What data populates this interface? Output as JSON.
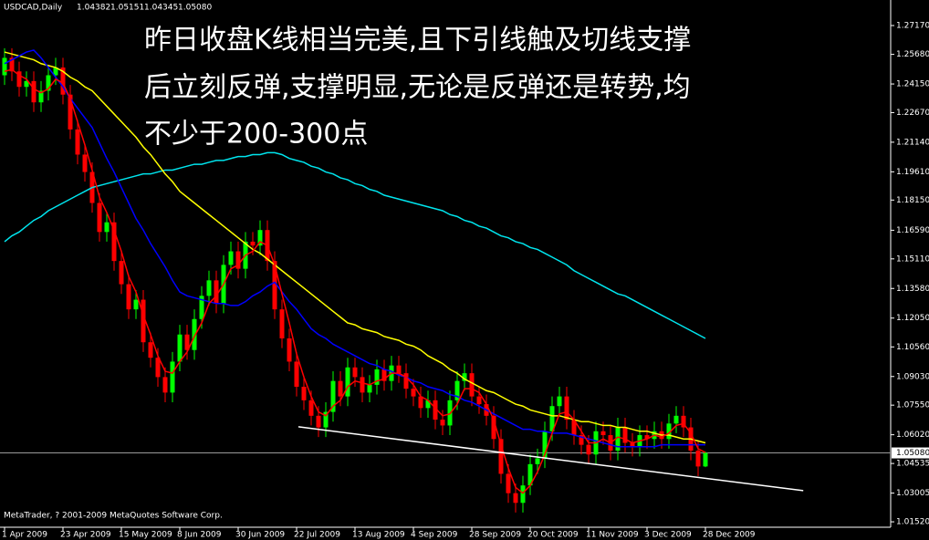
{
  "chart_data": {
    "type": "candlestick",
    "title": "USDCAD,Daily",
    "annotation": [
      "昨日收盘K线相当完美,且下引线触及切线支撑",
      "后立刻反弹,支撑明显,无论是反弹还是转势,均",
      "不少于200-300点"
    ],
    "footer": "MetaTrader, ? 2001-2009 MetaQuotes Software Corp.",
    "background": "#000000",
    "axis_color": "#ffffff",
    "up_color": "#00ff00",
    "down_color": "#ff0000",
    "categories": [
      "1 Apr 2009",
      null,
      null,
      null,
      null,
      null,
      null,
      null,
      "23 Apr 2009",
      null,
      null,
      null,
      null,
      null,
      null,
      null,
      "15 May 2009",
      null,
      null,
      null,
      null,
      null,
      null,
      null,
      "8 Jun 2009",
      null,
      null,
      null,
      null,
      null,
      null,
      null,
      "30 Jun 2009",
      null,
      null,
      null,
      null,
      null,
      null,
      null,
      "22 Jul 2009",
      null,
      null,
      null,
      null,
      null,
      null,
      null,
      "13 Aug 2009",
      null,
      null,
      null,
      null,
      null,
      null,
      null,
      "4 Sep 2009",
      null,
      null,
      null,
      null,
      null,
      null,
      null,
      "28 Sep 2009",
      null,
      null,
      null,
      null,
      null,
      null,
      null,
      "20 Oct 2009",
      null,
      null,
      null,
      null,
      null,
      null,
      null,
      "11 Nov 2009",
      null,
      null,
      null,
      null,
      null,
      null,
      null,
      "3 Dec 2009",
      null,
      null,
      null,
      null,
      null,
      null,
      null,
      "28 Dec 2009"
    ],
    "open": [
      1.246,
      1.255,
      1.248,
      1.24,
      1.243,
      1.232,
      1.238,
      1.246,
      1.25,
      1.236,
      1.218,
      1.205,
      1.196,
      1.18,
      1.165,
      1.17,
      1.15,
      1.138,
      1.125,
      1.13,
      1.108,
      1.1,
      1.09,
      1.082,
      1.098,
      1.112,
      1.104,
      1.12,
      1.132,
      1.14,
      1.128,
      1.148,
      1.155,
      1.146,
      1.16,
      1.158,
      1.166,
      1.15,
      1.125,
      1.11,
      1.098,
      1.085,
      1.078,
      1.07,
      1.064,
      1.072,
      1.088,
      1.08,
      1.095,
      1.09,
      1.082,
      1.086,
      1.094,
      1.088,
      1.096,
      1.092,
      1.084,
      1.08,
      1.074,
      1.078,
      1.068,
      1.065,
      1.078,
      1.088,
      1.092,
      1.08,
      1.076,
      1.07,
      1.058,
      1.04,
      1.03,
      1.025,
      1.034,
      1.045,
      1.048,
      1.062,
      1.075,
      1.08,
      1.068,
      1.06,
      1.055,
      1.05,
      1.062,
      1.06,
      1.052,
      1.064,
      1.056,
      1.054,
      1.06,
      1.058,
      1.062,
      1.058,
      1.066,
      1.07,
      1.064,
      1.052,
      1.04382
    ],
    "high": [
      1.26,
      1.26,
      1.253,
      1.248,
      1.248,
      1.243,
      1.251,
      1.255,
      1.255,
      1.241,
      1.223,
      1.21,
      1.201,
      1.185,
      1.175,
      1.175,
      1.155,
      1.143,
      1.135,
      1.135,
      1.113,
      1.105,
      1.095,
      1.103,
      1.117,
      1.117,
      1.125,
      1.137,
      1.145,
      1.145,
      1.153,
      1.16,
      1.16,
      1.165,
      1.165,
      1.171,
      1.171,
      1.155,
      1.13,
      1.115,
      1.103,
      1.09,
      1.083,
      1.075,
      1.077,
      1.093,
      1.093,
      1.1,
      1.1,
      1.095,
      1.091,
      1.099,
      1.099,
      1.101,
      1.101,
      1.097,
      1.089,
      1.085,
      1.083,
      1.083,
      1.073,
      1.083,
      1.093,
      1.097,
      1.097,
      1.085,
      1.081,
      1.075,
      1.063,
      1.045,
      1.035,
      1.039,
      1.05,
      1.053,
      1.067,
      1.08,
      1.085,
      1.085,
      1.073,
      1.065,
      1.06,
      1.067,
      1.067,
      1.065,
      1.069,
      1.069,
      1.061,
      1.065,
      1.065,
      1.067,
      1.067,
      1.071,
      1.075,
      1.075,
      1.069,
      1.057,
      1.05151
    ],
    "low": [
      1.241,
      1.243,
      1.235,
      1.235,
      1.227,
      1.227,
      1.233,
      1.241,
      1.231,
      1.213,
      1.2,
      1.191,
      1.175,
      1.16,
      1.16,
      1.145,
      1.133,
      1.12,
      1.12,
      1.103,
      1.095,
      1.085,
      1.077,
      1.077,
      1.093,
      1.099,
      1.099,
      1.115,
      1.127,
      1.123,
      1.123,
      1.143,
      1.141,
      1.141,
      1.153,
      1.153,
      1.145,
      1.12,
      1.105,
      1.093,
      1.08,
      1.073,
      1.065,
      1.059,
      1.059,
      1.067,
      1.075,
      1.075,
      1.085,
      1.077,
      1.077,
      1.081,
      1.083,
      1.083,
      1.087,
      1.079,
      1.075,
      1.069,
      1.069,
      1.063,
      1.06,
      1.06,
      1.073,
      1.083,
      1.075,
      1.071,
      1.065,
      1.053,
      1.035,
      1.025,
      1.02,
      1.02,
      1.029,
      1.04,
      1.043,
      1.057,
      1.07,
      1.063,
      1.055,
      1.05,
      1.045,
      1.045,
      1.055,
      1.047,
      1.047,
      1.051,
      1.049,
      1.049,
      1.053,
      1.053,
      1.053,
      1.053,
      1.061,
      1.059,
      1.047,
      1.0388,
      1.04345
    ],
    "close": [
      1.255,
      1.248,
      1.24,
      1.243,
      1.232,
      1.238,
      1.246,
      1.25,
      1.236,
      1.218,
      1.205,
      1.196,
      1.18,
      1.165,
      1.17,
      1.15,
      1.138,
      1.125,
      1.13,
      1.108,
      1.1,
      1.09,
      1.082,
      1.098,
      1.112,
      1.104,
      1.12,
      1.132,
      1.14,
      1.128,
      1.148,
      1.155,
      1.146,
      1.16,
      1.158,
      1.166,
      1.15,
      1.125,
      1.11,
      1.098,
      1.085,
      1.078,
      1.07,
      1.064,
      1.072,
      1.088,
      1.08,
      1.095,
      1.09,
      1.082,
      1.086,
      1.094,
      1.088,
      1.096,
      1.092,
      1.084,
      1.08,
      1.074,
      1.078,
      1.068,
      1.065,
      1.078,
      1.088,
      1.092,
      1.08,
      1.076,
      1.07,
      1.058,
      1.04,
      1.03,
      1.025,
      1.034,
      1.045,
      1.048,
      1.062,
      1.075,
      1.08,
      1.068,
      1.06,
      1.055,
      1.05,
      1.062,
      1.06,
      1.052,
      1.064,
      1.056,
      1.054,
      1.06,
      1.058,
      1.062,
      1.058,
      1.066,
      1.07,
      1.064,
      1.052,
      1.0438,
      1.0508
    ],
    "moving_averages": [
      {
        "color": "#00e5ee",
        "values": [
          1.16,
          1.163,
          1.165,
          1.168,
          1.171,
          1.173,
          1.176,
          1.178,
          1.18,
          1.182,
          1.184,
          1.186,
          1.188,
          1.189,
          1.19,
          1.191,
          1.192,
          1.193,
          1.194,
          1.195,
          1.195,
          1.196,
          1.197,
          1.197,
          1.198,
          1.199,
          1.2,
          1.2,
          1.201,
          1.202,
          1.202,
          1.203,
          1.204,
          1.204,
          1.205,
          1.205,
          1.206,
          1.206,
          1.205,
          1.203,
          1.202,
          1.201,
          1.199,
          1.198,
          1.196,
          1.195,
          1.193,
          1.192,
          1.19,
          1.189,
          1.187,
          1.186,
          1.184,
          1.183,
          1.182,
          1.181,
          1.18,
          1.179,
          1.178,
          1.177,
          1.176,
          1.174,
          1.173,
          1.171,
          1.17,
          1.168,
          1.167,
          1.165,
          1.163,
          1.162,
          1.16,
          1.159,
          1.157,
          1.156,
          1.154,
          1.152,
          1.15,
          1.148,
          1.145,
          1.143,
          1.141,
          1.139,
          1.137,
          1.135,
          1.133,
          1.132,
          1.13,
          1.128,
          1.126,
          1.124,
          1.122,
          1.12,
          1.118,
          1.116,
          1.114,
          1.112,
          1.11
        ]
      },
      {
        "color": "#ffff00",
        "values": [
          1.258,
          1.257,
          1.256,
          1.255,
          1.254,
          1.252,
          1.251,
          1.25,
          1.248,
          1.245,
          1.243,
          1.24,
          1.238,
          1.234,
          1.23,
          1.226,
          1.222,
          1.218,
          1.214,
          1.209,
          1.205,
          1.2,
          1.195,
          1.191,
          1.186,
          1.183,
          1.18,
          1.177,
          1.174,
          1.171,
          1.168,
          1.165,
          1.162,
          1.159,
          1.156,
          1.154,
          1.151,
          1.148,
          1.145,
          1.142,
          1.139,
          1.136,
          1.133,
          1.13,
          1.127,
          1.124,
          1.121,
          1.118,
          1.117,
          1.115,
          1.114,
          1.113,
          1.111,
          1.11,
          1.109,
          1.107,
          1.106,
          1.104,
          1.101,
          1.099,
          1.097,
          1.094,
          1.092,
          1.089,
          1.087,
          1.085,
          1.083,
          1.082,
          1.08,
          1.078,
          1.076,
          1.075,
          1.073,
          1.072,
          1.071,
          1.07,
          1.07,
          1.069,
          1.068,
          1.067,
          1.067,
          1.066,
          1.065,
          1.065,
          1.064,
          1.064,
          1.063,
          1.062,
          1.062,
          1.061,
          1.06,
          1.06,
          1.059,
          1.058,
          1.058,
          1.057,
          1.056
        ]
      },
      {
        "color": "#0000ff",
        "values": [
          1.252,
          1.254,
          1.256,
          1.258,
          1.259,
          1.255,
          1.25,
          1.245,
          1.24,
          1.234,
          1.229,
          1.224,
          1.219,
          1.211,
          1.203,
          1.196,
          1.188,
          1.18,
          1.172,
          1.166,
          1.159,
          1.153,
          1.147,
          1.14,
          1.134,
          1.132,
          1.131,
          1.13,
          1.129,
          1.128,
          1.128,
          1.127,
          1.127,
          1.129,
          1.132,
          1.134,
          1.137,
          1.139,
          1.134,
          1.129,
          1.125,
          1.12,
          1.115,
          1.112,
          1.11,
          1.107,
          1.105,
          1.103,
          1.101,
          1.099,
          1.097,
          1.096,
          1.094,
          1.093,
          1.091,
          1.09,
          1.088,
          1.087,
          1.085,
          1.084,
          1.083,
          1.081,
          1.08,
          1.078,
          1.077,
          1.075,
          1.073,
          1.071,
          1.069,
          1.067,
          1.065,
          1.063,
          1.063,
          1.062,
          1.062,
          1.061,
          1.061,
          1.061,
          1.06,
          1.059,
          1.058,
          1.057,
          1.056,
          1.055,
          1.054,
          1.054,
          1.054,
          1.054,
          1.054,
          1.054,
          1.055,
          1.055,
          1.055,
          1.055,
          1.055,
          1.055,
          1.055
        ]
      },
      {
        "color": "#ff0000",
        "values": [
          1.248,
          1.249,
          1.246,
          1.244,
          1.239,
          1.237,
          1.239,
          1.244,
          1.242,
          1.234,
          1.222,
          1.21,
          1.197,
          1.183,
          1.175,
          1.166,
          1.155,
          1.142,
          1.134,
          1.122,
          1.112,
          1.101,
          1.093,
          1.092,
          1.098,
          1.103,
          1.111,
          1.118,
          1.128,
          1.132,
          1.138,
          1.146,
          1.148,
          1.153,
          1.155,
          1.16,
          1.158,
          1.148,
          1.133,
          1.118,
          1.102,
          1.09,
          1.08,
          1.072,
          1.07,
          1.075,
          1.078,
          1.085,
          1.088,
          1.087,
          1.086,
          1.088,
          1.089,
          1.092,
          1.092,
          1.09,
          1.086,
          1.08,
          1.078,
          1.074,
          1.07,
          1.071,
          1.076,
          1.084,
          1.084,
          1.082,
          1.076,
          1.068,
          1.055,
          1.043,
          1.033,
          1.03,
          1.034,
          1.041,
          1.05,
          1.061,
          1.071,
          1.072,
          1.068,
          1.062,
          1.056,
          1.056,
          1.058,
          1.056,
          1.059,
          1.058,
          1.056,
          1.057,
          1.058,
          1.06,
          1.059,
          1.061,
          1.065,
          1.066,
          1.061,
          1.053,
          1.051
        ]
      }
    ],
    "trendline": {
      "color": "#ffffff",
      "x": [
        40.25,
        109.4
      ],
      "y": [
        1.0643,
        1.0313
      ]
    },
    "current_price": {
      "value": 1.0508,
      "label": "1.05080"
    },
    "ylim": [
      1.0124,
      1.2849
    ],
    "yticks": [
      {
        "value": 1.2717,
        "label": "1.27170"
      },
      {
        "value": 1.2568,
        "label": "1.25680"
      },
      {
        "value": 1.2415,
        "label": "1.24150"
      },
      {
        "value": 1.2267,
        "label": "1.22670"
      },
      {
        "value": 1.2114,
        "label": "1.21140"
      },
      {
        "value": 1.1961,
        "label": "1.19610"
      },
      {
        "value": 1.1815,
        "label": "1.18150"
      },
      {
        "value": 1.1659,
        "label": "1.16590"
      },
      {
        "value": 1.1511,
        "label": "1.15110"
      },
      {
        "value": 1.1358,
        "label": "1.13580"
      },
      {
        "value": 1.1205,
        "label": "1.12050"
      },
      {
        "value": 1.1056,
        "label": "1.10560"
      },
      {
        "value": 1.0903,
        "label": "1.09030"
      },
      {
        "value": 1.0755,
        "label": "1.07550"
      },
      {
        "value": 1.0602,
        "label": "1.06020"
      },
      1.04535,
      1.03005,
      {
        "value": 1.0152,
        "label": "1.01520"
      }
    ]
  }
}
